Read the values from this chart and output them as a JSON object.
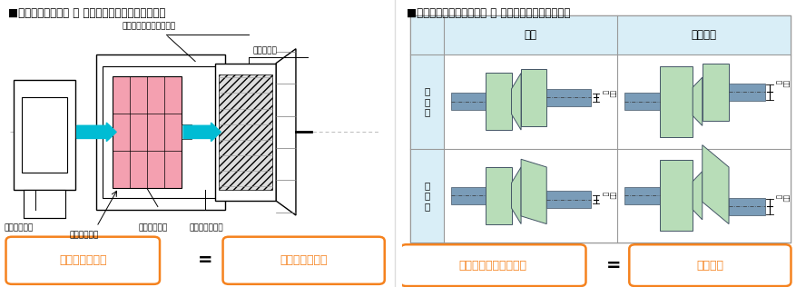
{
  "title_left": "■トルク伝達する力 ＝ 回転によって動力を伝達する",
  "title_right": "■ミスアライメントの許容 ＝ 偏心量と偏角量の大きさ",
  "bottom_left_box1": "伝達トルク：大",
  "bottom_left_eq": "＝",
  "bottom_left_box2": "ワーク重量：大",
  "bottom_right_box1": "ミスアライメント：大",
  "bottom_right_eq": "＝",
  "bottom_right_box2": "柔らかい",
  "orange_text": "#F5821E",
  "orange_border": "#F5821E",
  "bg_white": "#FFFFFF",
  "bg_light_blue": "#D9EEF7",
  "table_border": "#AAAAAA",
  "header_katai": "硬い",
  "header_yawarakai": "柔らかい",
  "row1_label": "偏\n心\n量",
  "row2_label": "偏\n角\n量",
  "green_fill": "#B8DDB8",
  "gray_shaft": "#7A9CB8",
  "coupling_pink": "#F4A0B0",
  "arrow_cyan": "#00BCD4",
  "title_fontsize": 8.5,
  "label_fontsize": 7,
  "small_fontsize": 6
}
